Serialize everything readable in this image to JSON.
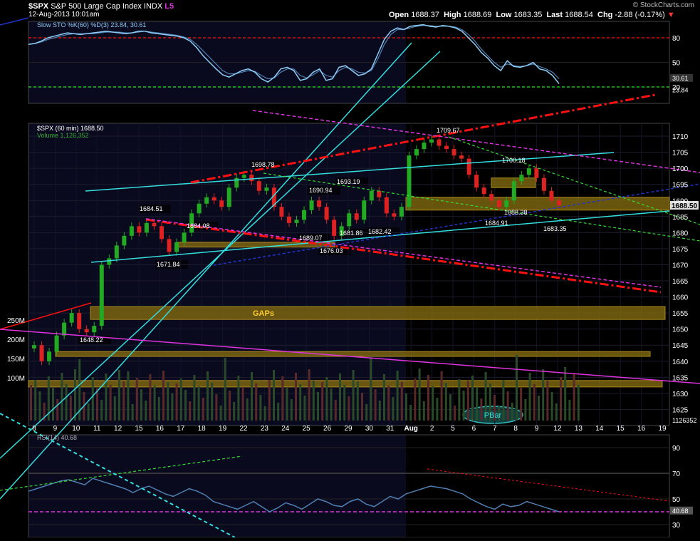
{
  "header": {
    "symbol": "$SPX",
    "name": "S&P 500 Large Cap Index",
    "exchange": "INDX",
    "badge": "L5",
    "datetime": "12-Aug-2013 10:01am",
    "open_label": "Open",
    "open": "1688.37",
    "high_label": "High",
    "high": "1688.69",
    "low_label": "Low",
    "low": "1683.35",
    "last_label": "Last",
    "last": "1688.54",
    "chg_label": "Chg",
    "chg": "-2.88 (-0.17%)",
    "watermark": "© StockCharts.com"
  },
  "colors": {
    "background": "#000000",
    "panel_bg_dark": "#0a0a1e",
    "candle_up": "#22aa22",
    "candle_down": "#dd2222",
    "cyan_line": "#33dddd",
    "magenta_line": "#dd33dd",
    "red_dash": "#ff1111",
    "green_dash": "#33dd33",
    "gold_box": "#7a6410",
    "sto_line": "#8ecdf5",
    "rsi_line": "#4f7fb0"
  },
  "chart_data": [
    {
      "panel": "sto",
      "type": "line",
      "title": "Slow STO %K(60) %D(3) 23.84, 30.61",
      "yticks": [
        80,
        50,
        20
      ],
      "ylim": [
        0,
        100
      ],
      "reference_lines": [
        80,
        20
      ],
      "last_values": [
        "30.61",
        "23.84"
      ],
      "series": [
        {
          "name": "%K",
          "values": [
            72,
            73,
            76,
            80,
            82,
            84,
            86,
            85,
            84,
            85,
            86,
            87,
            88,
            87,
            86,
            85,
            86,
            88,
            88,
            86,
            85,
            84,
            83,
            82,
            80,
            76,
            68,
            58,
            50,
            42,
            35,
            32,
            36,
            40,
            42,
            38,
            30,
            26,
            32,
            42,
            44,
            40,
            28,
            30,
            38,
            42,
            28,
            30,
            44,
            46,
            40,
            34,
            36,
            42,
            60,
            78,
            88,
            92,
            90,
            94,
            95,
            96,
            94,
            93,
            95,
            94,
            92,
            88,
            80,
            72,
            62,
            55,
            46,
            40,
            52,
            45,
            44,
            46,
            50,
            42,
            40,
            34,
            24
          ]
        },
        {
          "name": "%D",
          "values": [
            72,
            73,
            75,
            78,
            80,
            82,
            84,
            85,
            85,
            85,
            85,
            86,
            87,
            87,
            87,
            86,
            86,
            87,
            88,
            87,
            86,
            85,
            84,
            83,
            81,
            78,
            72,
            64,
            56,
            48,
            40,
            36,
            36,
            38,
            40,
            39,
            34,
            30,
            31,
            38,
            42,
            42,
            34,
            31,
            35,
            40,
            34,
            32,
            40,
            44,
            42,
            38,
            37,
            40,
            54,
            72,
            84,
            90,
            90,
            92,
            94,
            95,
            95,
            94,
            94,
            94,
            93,
            90,
            84,
            76,
            66,
            58,
            50,
            44,
            48,
            46,
            45,
            46,
            48,
            45,
            42,
            38,
            30
          ]
        }
      ]
    },
    {
      "panel": "price",
      "type": "candlestick",
      "title": "$SPX (60 min) 1688.50",
      "volume_label": "Volume 1,126,352",
      "yticks": [
        1710,
        1705,
        1700,
        1695,
        1690,
        1685,
        1680,
        1675,
        1670,
        1665,
        1660,
        1655,
        1650,
        1645,
        1640,
        1635,
        1630,
        1625
      ],
      "ylim": [
        1620,
        1714
      ],
      "vol_ticks": [
        "250M",
        "200M",
        "150M",
        "100M"
      ],
      "last_price_label": "1688.50",
      "last_volume_label": "1126352",
      "xlabels": [
        "8",
        "9",
        "10",
        "11",
        "12",
        "15",
        "16",
        "17",
        "18",
        "19",
        "22",
        "23",
        "24",
        "25",
        "26",
        "29",
        "30",
        "31",
        "Aug",
        "2",
        "5",
        "6",
        "7",
        "8",
        "9",
        "12",
        "13",
        "14",
        "15",
        "16",
        "19"
      ],
      "closes": [
        1645,
        1640,
        1643,
        1648,
        1652,
        1655,
        1650,
        1649,
        1651,
        1670,
        1672,
        1676,
        1679,
        1682,
        1680,
        1683,
        1682,
        1678,
        1674,
        1677,
        1680,
        1686,
        1689,
        1691,
        1690,
        1688,
        1694,
        1697,
        1698,
        1696,
        1693,
        1694,
        1688,
        1685,
        1683,
        1684,
        1687,
        1690,
        1688,
        1684,
        1679,
        1682,
        1686,
        1684,
        1690,
        1693,
        1691,
        1686,
        1685,
        1688,
        1704,
        1706,
        1708,
        1709,
        1707,
        1706,
        1704,
        1703,
        1698,
        1694,
        1692,
        1690,
        1688,
        1690,
        1696,
        1698,
        1700,
        1697,
        1693,
        1690,
        1688.5
      ],
      "annotations": [
        "1684.51",
        "1671.84",
        "1684.08",
        "1698.78",
        "1690.94",
        "1693.19",
        "1689.07",
        "1676.03",
        "1681.86",
        "1682.42",
        "1709.67",
        "1700.18",
        "1688.38",
        "1684.91",
        "1683.35",
        "1648.22"
      ],
      "text_labels": [
        "GAPs",
        "PBar"
      ]
    },
    {
      "panel": "rsi",
      "type": "line",
      "title": "RSI(14) 40.68",
      "yticks": [
        90,
        70,
        50,
        30
      ],
      "ylim": [
        20,
        100
      ],
      "reference_lines": [
        70,
        40
      ],
      "last_value": "40.68",
      "series": [
        {
          "name": "RSI",
          "values": [
            56,
            58,
            60,
            62,
            64,
            65,
            63,
            61,
            66,
            64,
            62,
            60,
            58,
            55,
            58,
            60,
            57,
            54,
            52,
            55,
            58,
            56,
            53,
            48,
            46,
            44,
            42,
            45,
            48,
            44,
            40,
            43,
            47,
            45,
            42,
            46,
            50,
            48,
            45,
            44,
            48,
            50,
            46,
            44,
            48,
            52,
            50,
            54,
            56,
            58,
            60,
            59,
            58,
            56,
            54,
            50,
            47,
            44,
            42,
            46,
            44,
            45,
            48,
            46,
            44,
            42,
            40
          ]
        }
      ]
    }
  ]
}
